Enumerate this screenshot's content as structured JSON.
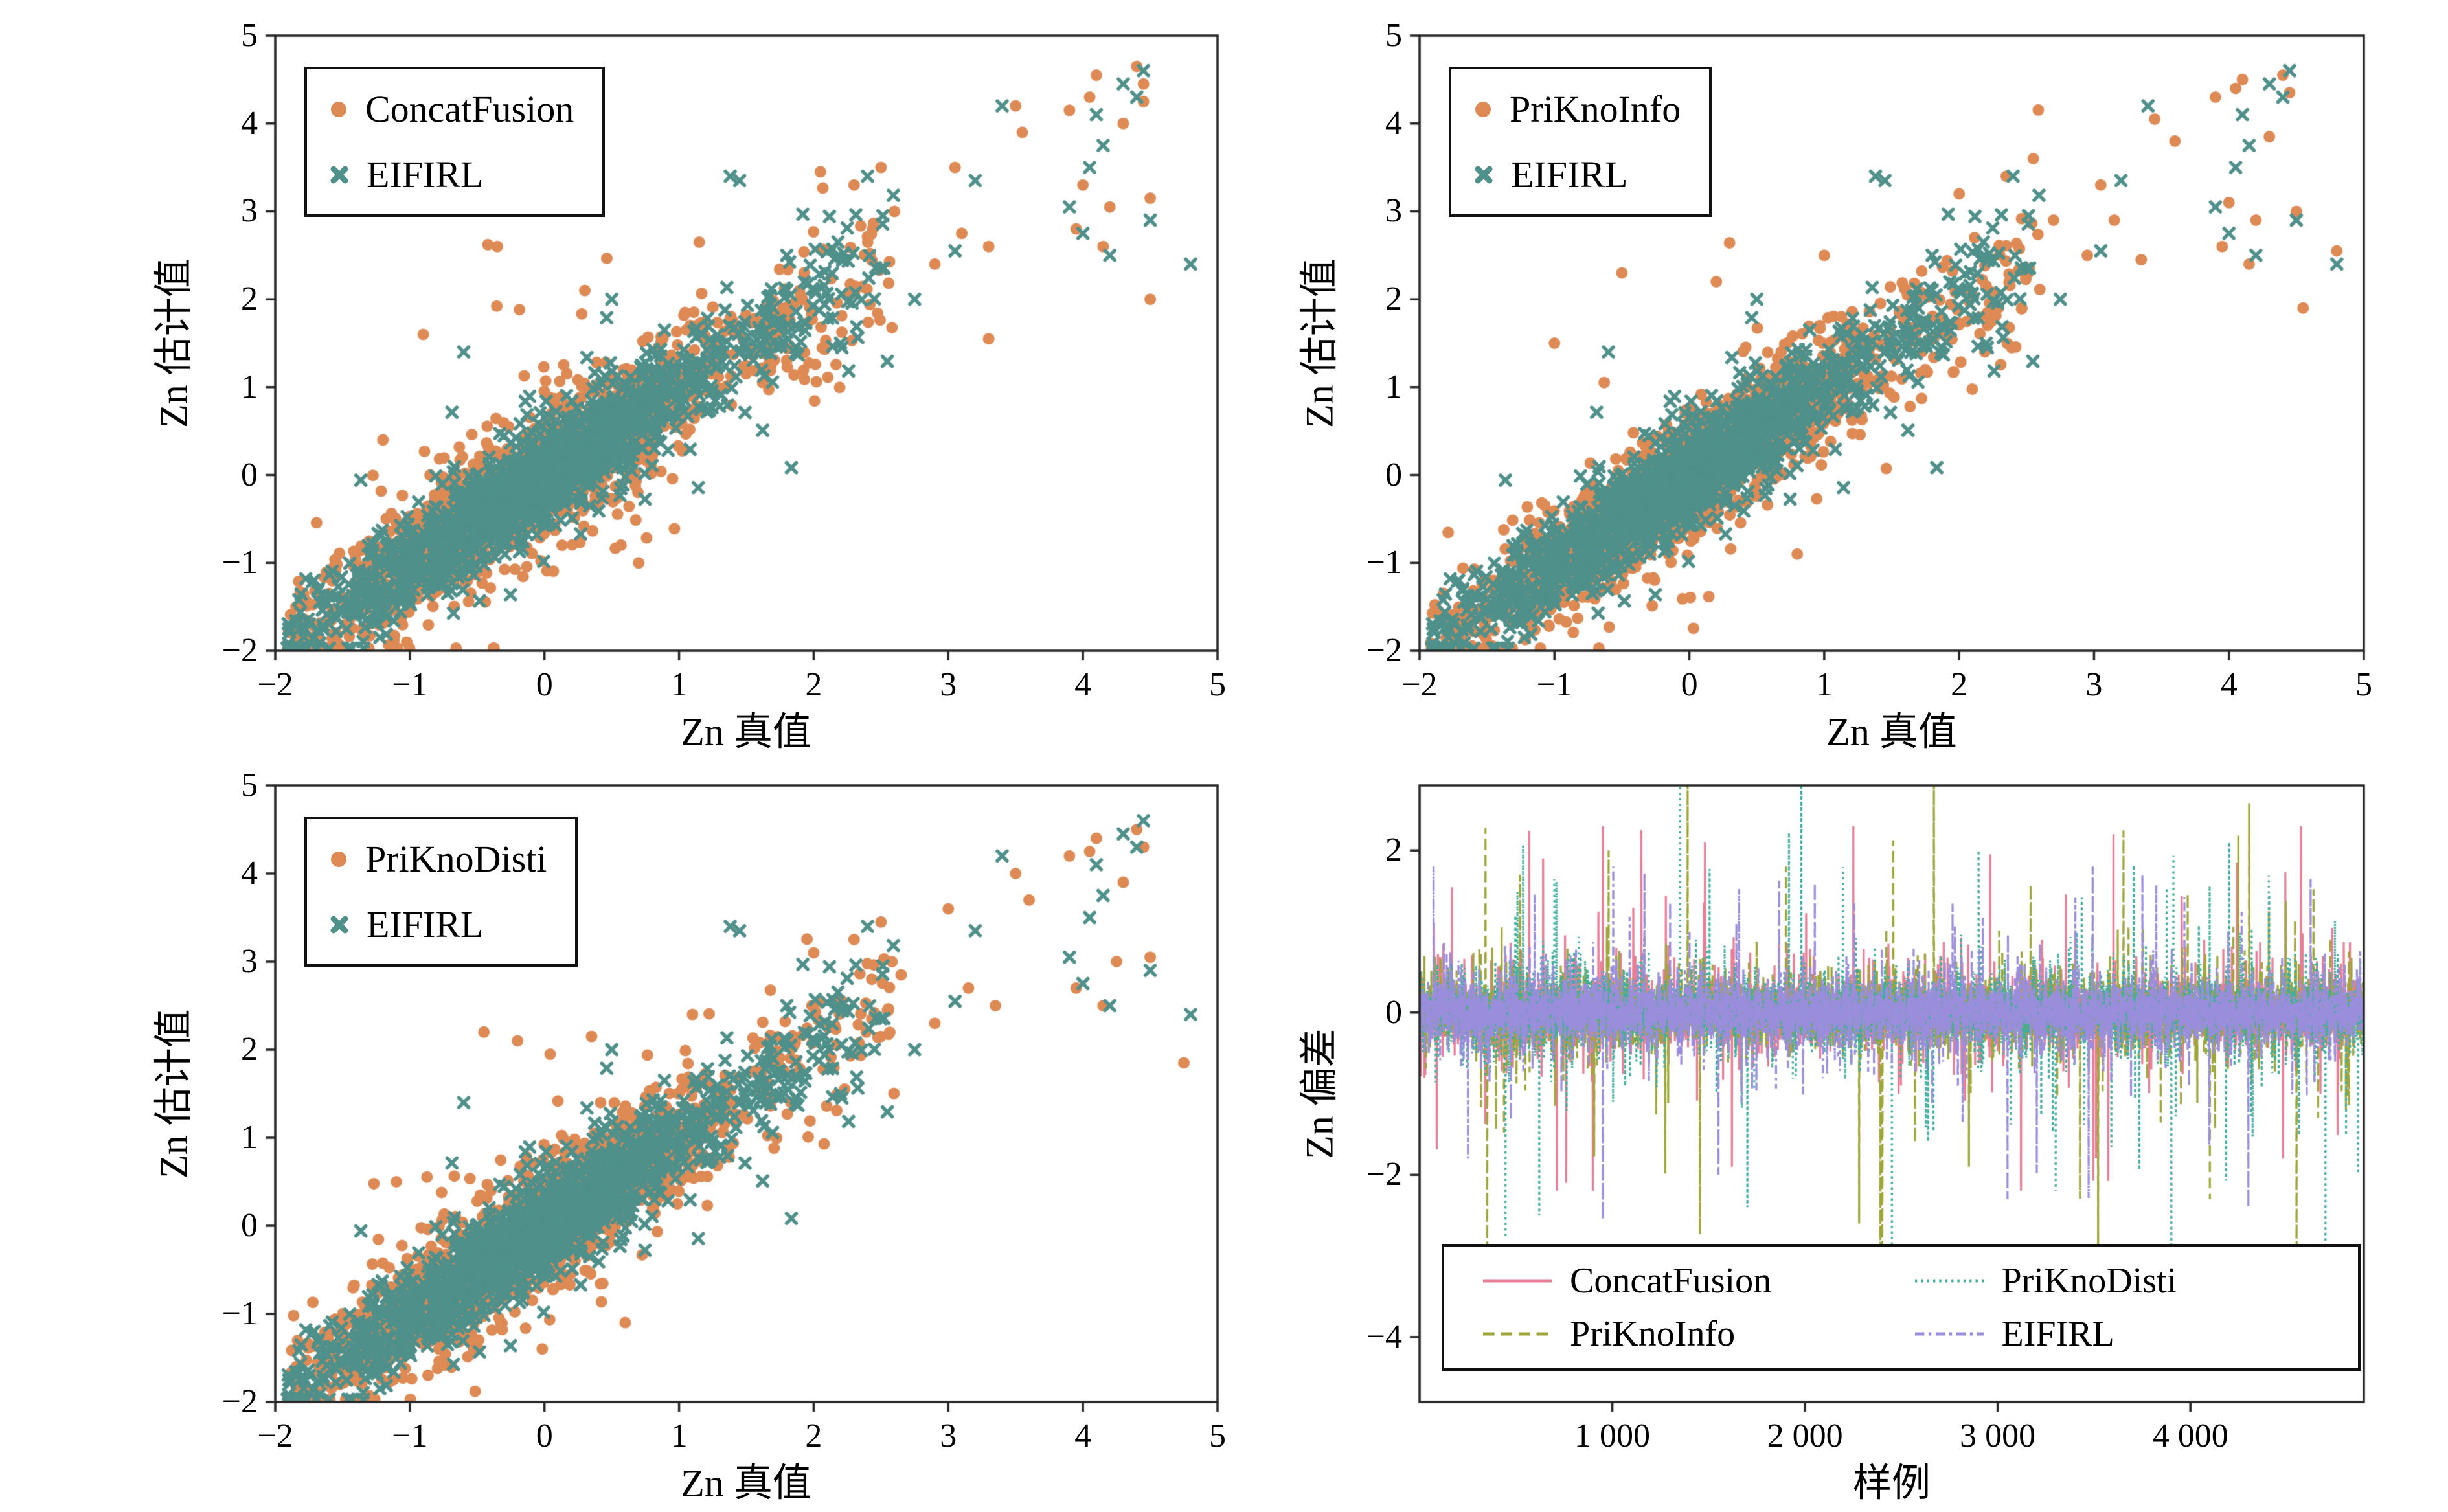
{
  "chart_data": [
    {
      "id": "top-left",
      "type": "scatter",
      "xlabel": "Zn 真值",
      "ylabel": "Zn 估计值",
      "xlim": [
        -2,
        5
      ],
      "ylim": [
        -2,
        5
      ],
      "xtick_values": [
        -2,
        -1,
        0,
        1,
        2,
        3,
        4,
        5
      ],
      "xtick_labels": [
        "−2",
        "−1",
        "0",
        "1",
        "2",
        "3",
        "4",
        "5"
      ],
      "ytick_values": [
        -2,
        -1,
        0,
        1,
        2,
        3,
        4,
        5
      ],
      "ytick_labels": [
        "−2",
        "−1",
        "0",
        "1",
        "2",
        "3",
        "4",
        "5"
      ],
      "legend_position": "upper left",
      "sample_spec": {
        "n_core": 1500,
        "n_tail": 60,
        "x_mean": -0.15,
        "x_sigma": 0.85,
        "x_min": -1.92,
        "x_max": 2.6,
        "tail_x_min": 1.6,
        "tail_x_max": 2.6
      },
      "series": [
        {
          "name": "ConcatFusion",
          "marker": "circle",
          "color": "#DE8A55",
          "core_seed": 1007,
          "tail_seed": 31,
          "noise_sigma": 0.36,
          "outlier_points": [
            [
              -0.35,
              2.6
            ],
            [
              0.3,
              2.1
            ],
            [
              1.15,
              2.65
            ],
            [
              2.05,
              3.45
            ],
            [
              2.3,
              3.3
            ],
            [
              2.5,
              3.5
            ],
            [
              2.6,
              3.0
            ],
            [
              2.9,
              2.4
            ],
            [
              3.05,
              3.5
            ],
            [
              3.1,
              2.75
            ],
            [
              3.3,
              2.6
            ],
            [
              3.3,
              1.55
            ],
            [
              3.5,
              4.2
            ],
            [
              3.55,
              3.9
            ],
            [
              3.9,
              4.15
            ],
            [
              3.95,
              2.8
            ],
            [
              4.0,
              3.3
            ],
            [
              4.05,
              4.3
            ],
            [
              4.1,
              4.55
            ],
            [
              4.15,
              2.6
            ],
            [
              4.2,
              3.05
            ],
            [
              4.3,
              4.0
            ],
            [
              4.4,
              4.65
            ],
            [
              4.45,
              4.45
            ],
            [
              4.45,
              4.25
            ],
            [
              4.5,
              3.15
            ],
            [
              4.5,
              2.0
            ],
            [
              -0.9,
              1.6
            ],
            [
              -1.2,
              0.4
            ],
            [
              0.7,
              -1.0
            ]
          ]
        },
        {
          "name": "EIFIRL",
          "marker": "x",
          "color": "#4F908B",
          "core_seed": 2024,
          "tail_seed": 41,
          "noise_sigma": 0.28,
          "outlier_points": [
            [
              1.38,
              3.4
            ],
            [
              1.45,
              3.35
            ],
            [
              1.8,
              2.5
            ],
            [
              2.2,
              1.5
            ],
            [
              2.4,
              3.4
            ],
            [
              2.5,
              2.35
            ],
            [
              2.75,
              2.0
            ],
            [
              3.05,
              2.55
            ],
            [
              3.2,
              3.35
            ],
            [
              3.4,
              4.2
            ],
            [
              3.9,
              3.05
            ],
            [
              4.0,
              2.75
            ],
            [
              4.05,
              3.5
            ],
            [
              4.1,
              4.1
            ],
            [
              4.15,
              3.75
            ],
            [
              4.2,
              2.5
            ],
            [
              4.3,
              4.45
            ],
            [
              4.4,
              4.3
            ],
            [
              4.45,
              4.6
            ],
            [
              4.5,
              2.9
            ],
            [
              4.8,
              2.4
            ],
            [
              0.5,
              2.0
            ],
            [
              -0.6,
              1.4
            ]
          ]
        }
      ]
    },
    {
      "id": "top-right",
      "type": "scatter",
      "xlabel": "Zn 真值",
      "ylabel": "Zn 估计值",
      "xlim": [
        -2,
        5
      ],
      "ylim": [
        -2,
        5
      ],
      "xtick_values": [
        -2,
        -1,
        0,
        1,
        2,
        3,
        4,
        5
      ],
      "xtick_labels": [
        "−2",
        "−1",
        "0",
        "1",
        "2",
        "3",
        "4",
        "5"
      ],
      "ytick_values": [
        -2,
        -1,
        0,
        1,
        2,
        3,
        4,
        5
      ],
      "ytick_labels": [
        "−2",
        "−1",
        "0",
        "1",
        "2",
        "3",
        "4",
        "5"
      ],
      "legend_position": "upper left",
      "sample_spec": {
        "n_core": 1500,
        "n_tail": 60,
        "x_mean": -0.15,
        "x_sigma": 0.85,
        "x_min": -1.92,
        "x_max": 2.6,
        "tail_x_min": 1.6,
        "tail_x_max": 2.6
      },
      "series": [
        {
          "name": "PriKnoInfo",
          "marker": "circle",
          "color": "#DE8A55",
          "core_seed": 1008,
          "tail_seed": 32,
          "noise_sigma": 0.34,
          "outlier_points": [
            [
              -0.5,
              2.3
            ],
            [
              0.2,
              2.2
            ],
            [
              1.0,
              2.5
            ],
            [
              2.0,
              3.2
            ],
            [
              2.35,
              3.4
            ],
            [
              2.55,
              3.6
            ],
            [
              2.7,
              2.9
            ],
            [
              2.95,
              2.5
            ],
            [
              3.05,
              3.3
            ],
            [
              3.15,
              2.9
            ],
            [
              3.35,
              2.45
            ],
            [
              3.45,
              4.05
            ],
            [
              3.6,
              3.8
            ],
            [
              3.9,
              4.3
            ],
            [
              3.95,
              2.6
            ],
            [
              4.0,
              3.1
            ],
            [
              4.05,
              4.4
            ],
            [
              4.1,
              4.5
            ],
            [
              4.15,
              2.4
            ],
            [
              4.2,
              2.9
            ],
            [
              4.3,
              3.85
            ],
            [
              4.4,
              4.55
            ],
            [
              4.45,
              4.35
            ],
            [
              4.5,
              3.0
            ],
            [
              4.55,
              1.9
            ],
            [
              4.8,
              2.55
            ],
            [
              -1.0,
              1.5
            ],
            [
              0.8,
              -0.9
            ]
          ]
        },
        {
          "name": "EIFIRL",
          "marker": "x",
          "color": "#4F908B",
          "core_seed": 2024,
          "tail_seed": 41,
          "noise_sigma": 0.28,
          "outlier_points": [
            [
              1.38,
              3.4
            ],
            [
              1.45,
              3.35
            ],
            [
              1.8,
              2.5
            ],
            [
              2.2,
              1.5
            ],
            [
              2.4,
              3.4
            ],
            [
              2.5,
              2.35
            ],
            [
              2.75,
              2.0
            ],
            [
              3.05,
              2.55
            ],
            [
              3.2,
              3.35
            ],
            [
              3.4,
              4.2
            ],
            [
              3.9,
              3.05
            ],
            [
              4.0,
              2.75
            ],
            [
              4.05,
              3.5
            ],
            [
              4.1,
              4.1
            ],
            [
              4.15,
              3.75
            ],
            [
              4.2,
              2.5
            ],
            [
              4.3,
              4.45
            ],
            [
              4.4,
              4.3
            ],
            [
              4.45,
              4.6
            ],
            [
              4.5,
              2.9
            ],
            [
              4.8,
              2.4
            ],
            [
              0.5,
              2.0
            ],
            [
              -0.6,
              1.4
            ]
          ]
        }
      ]
    },
    {
      "id": "bottom-left",
      "type": "scatter",
      "xlabel": "Zn 真值",
      "ylabel": "Zn 估计值",
      "xlim": [
        -2,
        5
      ],
      "ylim": [
        -2,
        5
      ],
      "xtick_values": [
        -2,
        -1,
        0,
        1,
        2,
        3,
        4,
        5
      ],
      "xtick_labels": [
        "−2",
        "−1",
        "0",
        "1",
        "2",
        "3",
        "4",
        "5"
      ],
      "ytick_values": [
        -2,
        -1,
        0,
        1,
        2,
        3,
        4,
        5
      ],
      "ytick_labels": [
        "−2",
        "−1",
        "0",
        "1",
        "2",
        "3",
        "4",
        "5"
      ],
      "legend_position": "upper left",
      "sample_spec": {
        "n_core": 1500,
        "n_tail": 60,
        "x_mean": -0.15,
        "x_sigma": 0.85,
        "x_min": -1.92,
        "x_max": 2.6,
        "tail_x_min": 1.6,
        "tail_x_max": 2.6
      },
      "series": [
        {
          "name": "PriKnoDisti",
          "marker": "circle",
          "color": "#DE8A55",
          "core_seed": 1009,
          "tail_seed": 33,
          "noise_sigma": 0.35,
          "outlier_points": [
            [
              -0.45,
              2.2
            ],
            [
              -0.2,
              2.1
            ],
            [
              0.35,
              2.15
            ],
            [
              1.1,
              2.4
            ],
            [
              2.0,
              3.1
            ],
            [
              2.3,
              3.25
            ],
            [
              2.5,
              3.45
            ],
            [
              2.65,
              2.85
            ],
            [
              2.9,
              2.3
            ],
            [
              3.0,
              3.6
            ],
            [
              3.15,
              2.7
            ],
            [
              3.35,
              2.5
            ],
            [
              3.5,
              4.0
            ],
            [
              3.6,
              3.7
            ],
            [
              3.9,
              4.2
            ],
            [
              3.95,
              2.7
            ],
            [
              4.05,
              4.25
            ],
            [
              4.1,
              4.4
            ],
            [
              4.15,
              2.5
            ],
            [
              4.25,
              3.0
            ],
            [
              4.3,
              3.9
            ],
            [
              4.4,
              4.5
            ],
            [
              4.45,
              4.3
            ],
            [
              4.5,
              3.05
            ],
            [
              4.75,
              1.85
            ],
            [
              -1.1,
              0.5
            ],
            [
              0.6,
              -1.1
            ]
          ]
        },
        {
          "name": "EIFIRL",
          "marker": "x",
          "color": "#4F908B",
          "core_seed": 2024,
          "tail_seed": 41,
          "noise_sigma": 0.28,
          "outlier_points": [
            [
              1.38,
              3.4
            ],
            [
              1.45,
              3.35
            ],
            [
              1.8,
              2.5
            ],
            [
              2.2,
              1.5
            ],
            [
              2.4,
              3.4
            ],
            [
              2.5,
              2.35
            ],
            [
              2.75,
              2.0
            ],
            [
              3.05,
              2.55
            ],
            [
              3.2,
              3.35
            ],
            [
              3.4,
              4.2
            ],
            [
              3.9,
              3.05
            ],
            [
              4.0,
              2.75
            ],
            [
              4.05,
              3.5
            ],
            [
              4.1,
              4.1
            ],
            [
              4.15,
              3.75
            ],
            [
              4.2,
              2.5
            ],
            [
              4.3,
              4.45
            ],
            [
              4.4,
              4.3
            ],
            [
              4.45,
              4.6
            ],
            [
              4.5,
              2.9
            ],
            [
              4.8,
              2.4
            ],
            [
              0.5,
              2.0
            ],
            [
              -0.6,
              1.4
            ]
          ]
        }
      ]
    },
    {
      "id": "bottom-right",
      "type": "line",
      "xlabel": "样例",
      "ylabel": "Zn 偏差",
      "xlim": [
        0,
        4900
      ],
      "ylim": [
        -4.8,
        2.8
      ],
      "xtick_values": [
        1000,
        2000,
        3000,
        4000
      ],
      "xtick_labels": [
        "1 000",
        "2 000",
        "3 000",
        "4 000"
      ],
      "ytick_values": [
        2,
        0,
        -2,
        -4
      ],
      "ytick_labels": [
        "2",
        "0",
        "−2",
        "−4"
      ],
      "legend_position": "lower center",
      "n_samples": 4900,
      "noise_spec": {
        "base_sigma": 0.17,
        "medium_prob": 0.1,
        "medium_min": 0.2,
        "medium_range": 0.5,
        "large_prob": 0.013,
        "large_base": 0.5,
        "large_scale": 0.55,
        "large_pos_prob": 0.45
      },
      "series": [
        {
          "name": "ConcatFusion",
          "style": "solid",
          "color": "#E87E96",
          "seed": 21,
          "clip": [
            -2.2,
            2.3
          ],
          "spikes": [
            [
              640,
              1.9
            ],
            [
              1150,
              2.25
            ],
            [
              1480,
              2.1
            ],
            [
              2250,
              2.3
            ],
            [
              2960,
              1.95
            ],
            [
              3600,
              2.2
            ],
            [
              4240,
              1.85
            ],
            [
              760,
              -2.1
            ],
            [
              1620,
              -1.9
            ],
            [
              3120,
              -2.2
            ],
            [
              4480,
              -1.8
            ]
          ]
        },
        {
          "name": "PriKnoInfo",
          "style": "dashed",
          "color": "#9EA63B",
          "seed": 22,
          "clip": [
            -3.55,
            2.95
          ],
          "spikes": [
            [
              350,
              -3.0
            ],
            [
              520,
              1.7
            ],
            [
              980,
              2.0
            ],
            [
              1390,
              2.95
            ],
            [
              1900,
              1.8
            ],
            [
              2280,
              -2.6
            ],
            [
              2850,
              -1.9
            ],
            [
              3520,
              -2.9
            ],
            [
              4100,
              -2.3
            ],
            [
              4550,
              -3.5
            ]
          ]
        },
        {
          "name": "PriKnoDisti",
          "style": "dotted",
          "color": "#3FAE9E",
          "seed": 23,
          "clip": [
            -3.1,
            2.95
          ],
          "spikes": [
            [
              620,
              -2.5
            ],
            [
              1350,
              2.9
            ],
            [
              1700,
              -2.4
            ],
            [
              1980,
              2.95
            ],
            [
              2450,
              -3.05
            ],
            [
              2900,
              2.0
            ],
            [
              3300,
              -2.2
            ],
            [
              3900,
              -3.1
            ],
            [
              4200,
              2.1
            ],
            [
              4700,
              -2.9
            ]
          ]
        },
        {
          "name": "EIFIRL",
          "style": "dashdot",
          "color": "#9A8EDC",
          "seed": 24,
          "clip": [
            -2.6,
            1.8
          ],
          "spikes": [
            [
              250,
              -1.8
            ],
            [
              950,
              -2.55
            ],
            [
              1550,
              -2.0
            ],
            [
              2050,
              1.6
            ],
            [
              3050,
              -2.3
            ],
            [
              3750,
              1.7
            ],
            [
              4300,
              -2.4
            ]
          ]
        }
      ],
      "legend_order_names": [
        "ConcatFusion",
        "PriKnoDisti",
        "PriKnoInfo",
        "EIFIRL"
      ]
    }
  ]
}
